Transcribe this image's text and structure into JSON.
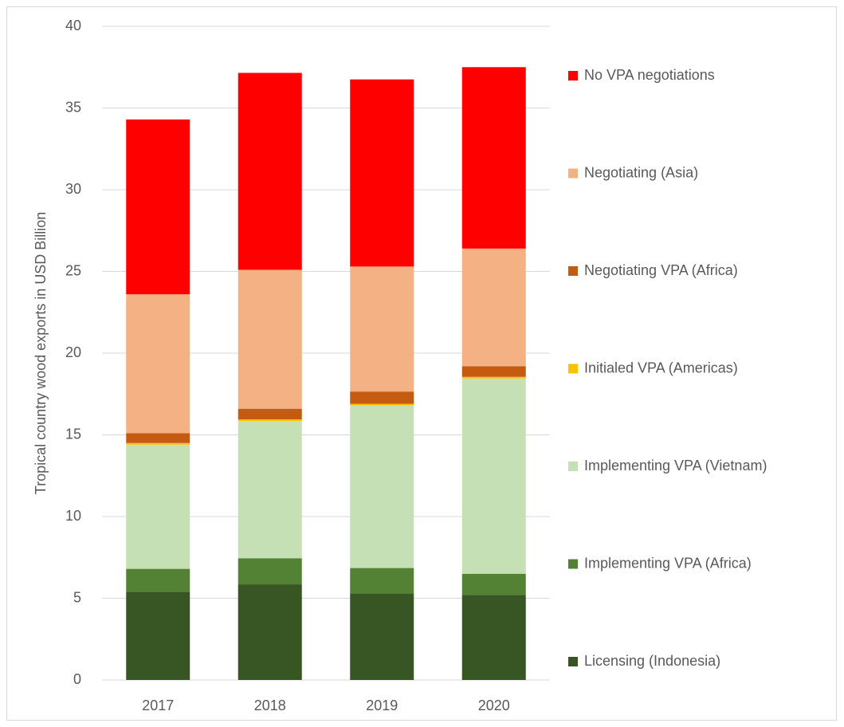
{
  "chart_data": {
    "type": "stacked_bar",
    "ylabel": "Tropical country wood exports in USD Billion",
    "categories": [
      "2017",
      "2018",
      "2019",
      "2020"
    ],
    "series": [
      {
        "name": "Licensing (Indonesia)",
        "color": "#375623",
        "values": [
          5.4,
          5.85,
          5.3,
          5.2
        ]
      },
      {
        "name": "Implementing VPA (Africa)",
        "color": "#548235",
        "values": [
          1.4,
          1.6,
          1.55,
          1.3
        ]
      },
      {
        "name": "Implementing VPA (Vietnam)",
        "color": "#c5e0b4",
        "values": [
          7.6,
          8.4,
          9.95,
          11.95
        ]
      },
      {
        "name": "Initialed VPA (Americas)",
        "color": "#ffc000",
        "values": [
          0.1,
          0.1,
          0.1,
          0.1
        ]
      },
      {
        "name": "Negotiating VPA (Africa)",
        "color": "#c55a11",
        "values": [
          0.6,
          0.65,
          0.75,
          0.65
        ]
      },
      {
        "name": "Negotiating (Asia)",
        "color": "#f4b183",
        "values": [
          8.5,
          8.5,
          7.65,
          7.2
        ]
      },
      {
        "name": "No VPA negotiations",
        "color": "#ff0000",
        "values": [
          10.7,
          12.05,
          11.45,
          11.1
        ]
      }
    ],
    "ylim": [
      0,
      40
    ],
    "yticks": [
      0,
      5,
      10,
      15,
      20,
      25,
      30,
      35,
      40
    ],
    "grid": true,
    "legend": "right"
  }
}
